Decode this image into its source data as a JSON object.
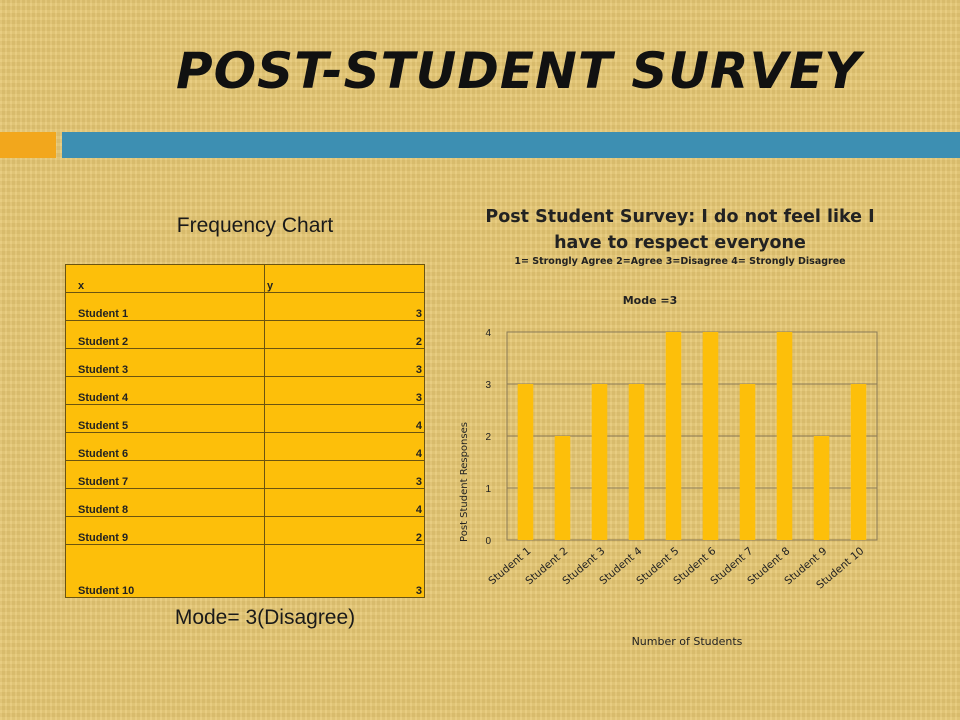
{
  "slide": {
    "title": "Post-Student Survey",
    "frequency_title": "Frequency Chart",
    "mode_text": "Mode= 3(Disagree)",
    "colors": {
      "accent_band": "#f2a71c",
      "secondary_band": "#3d8fb2",
      "bar": "#fdbf0a"
    }
  },
  "table": {
    "headers": [
      "x",
      "y"
    ],
    "rows": [
      [
        "Student 1",
        "3"
      ],
      [
        "Student 2",
        "2"
      ],
      [
        "Student 3",
        "3"
      ],
      [
        "Student 4",
        "3"
      ],
      [
        "Student 5",
        "4"
      ],
      [
        "Student 6",
        "4"
      ],
      [
        "Student 7",
        "3"
      ],
      [
        "Student 8",
        "4"
      ],
      [
        "Student 9",
        "2"
      ],
      [
        "Student 10",
        "3"
      ]
    ]
  },
  "chart_data": {
    "type": "bar",
    "title": "Post Student Survey: I do not feel like I have to respect everyone",
    "subtitle": "1= Strongly Agree 2=Agree 3=Disagree 4= Strongly Disagree",
    "annotation": "Mode =3",
    "categories": [
      "Student 1",
      "Student 2",
      "Student 3",
      "Student 4",
      "Student 5",
      "Student 6",
      "Student 7",
      "Student 8",
      "Student 9",
      "Student 10"
    ],
    "values": [
      3,
      2,
      3,
      3,
      4,
      4,
      3,
      4,
      2,
      3
    ],
    "xlabel": "Number of Students",
    "ylabel": "Post Student Responses",
    "ylim": [
      0,
      4
    ],
    "yticks": [
      0,
      1,
      2,
      3,
      4
    ],
    "grid": true,
    "legend": "none"
  }
}
